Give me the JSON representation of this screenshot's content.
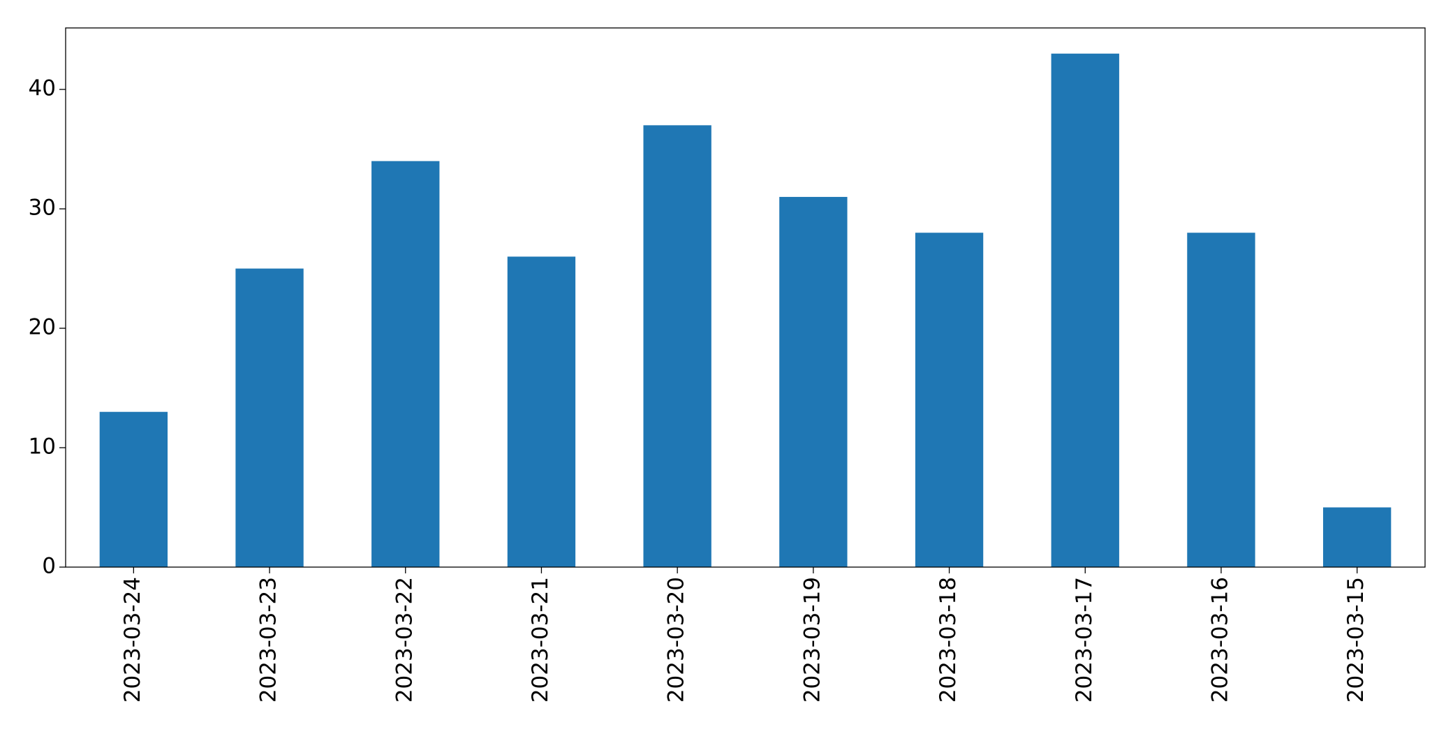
{
  "chart_data": {
    "type": "bar",
    "categories": [
      "2023-03-24",
      "2023-03-23",
      "2023-03-22",
      "2023-03-21",
      "2023-03-20",
      "2023-03-19",
      "2023-03-18",
      "2023-03-17",
      "2023-03-16",
      "2023-03-15"
    ],
    "values": [
      13,
      25,
      34,
      26,
      37,
      31,
      28,
      43,
      28,
      5
    ],
    "color": "#1f77b4",
    "ylim": [
      0,
      45.15
    ],
    "yticks": [
      0,
      10,
      20,
      30,
      40
    ],
    "grid": false
  }
}
